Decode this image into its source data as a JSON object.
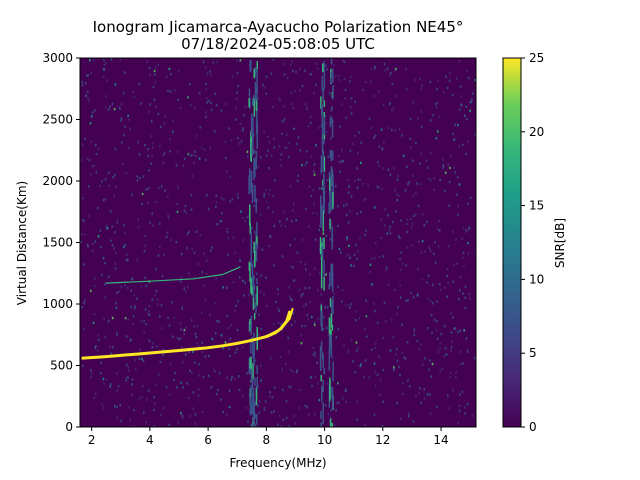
{
  "chart_data": {
    "type": "heatmap",
    "title": "Ionogram Jicamarca-Ayacucho Polarization NE45°",
    "subtitle": "07/18/2024-05:08:05 UTC",
    "xlabel": "Frequency(MHz)",
    "ylabel": "Virtual Distance(Km)",
    "xlim": [
      1.6,
      15.2
    ],
    "ylim": [
      0,
      3000
    ],
    "xticks": [
      2,
      4,
      6,
      8,
      10,
      12,
      14
    ],
    "yticks": [
      0,
      500,
      1000,
      1500,
      2000,
      2500,
      3000
    ],
    "colorbar": {
      "label": "SNR[dB]",
      "range": [
        0,
        25
      ],
      "ticks": [
        0,
        5,
        10,
        15,
        20,
        25
      ],
      "colormap": "viridis"
    },
    "traces": [
      {
        "mode": "O",
        "points": [
          [
            1.7,
            560
          ],
          [
            2.5,
            572
          ],
          [
            3.0,
            582
          ],
          [
            3.5,
            592
          ],
          [
            4.0,
            602
          ],
          [
            4.5,
            612
          ],
          [
            5.0,
            622
          ],
          [
            5.5,
            633
          ],
          [
            6.0,
            645
          ],
          [
            6.5,
            660
          ],
          [
            7.0,
            680
          ],
          [
            7.5,
            705
          ],
          [
            8.0,
            735
          ],
          [
            8.3,
            765
          ],
          [
            8.5,
            800
          ],
          [
            8.7,
            860
          ],
          [
            8.8,
            935
          ]
        ]
      },
      {
        "mode": "X",
        "points": [
          [
            7.8,
            720
          ],
          [
            8.1,
            750
          ],
          [
            8.4,
            785
          ],
          [
            8.6,
            825
          ],
          [
            8.8,
            880
          ],
          [
            8.9,
            960
          ]
        ]
      },
      {
        "mode": "weak",
        "points": [
          [
            2.5,
            1170
          ],
          [
            4.0,
            1185
          ],
          [
            5.5,
            1205
          ],
          [
            6.5,
            1240
          ],
          [
            7.1,
            1300
          ]
        ]
      }
    ],
    "interference_bands_mhz": [
      7.45,
      7.6,
      9.9,
      10.2
    ],
    "noise_level_db": 2
  }
}
